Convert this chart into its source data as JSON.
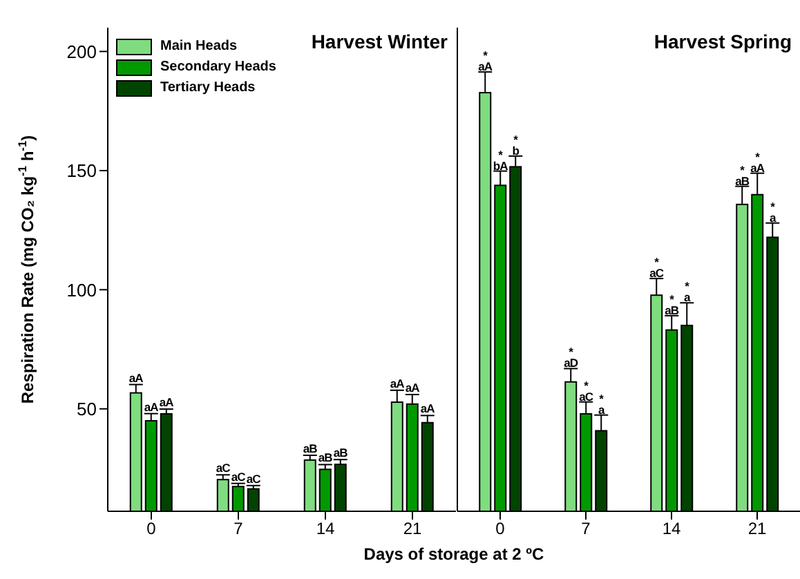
{
  "chart_data": [
    {
      "type": "bar",
      "title": "Harvest Winter",
      "xlabel": "Days of storage at 2 ºC",
      "ylabel": "Respiration Rate (mg CO₂ kg$^{-1}$ h$^{-1}$)",
      "categories": [
        "0",
        "7",
        "14",
        "21"
      ],
      "ylim": [
        7,
        210
      ],
      "yticks": [
        50,
        100,
        150,
        200
      ],
      "legend": "top left",
      "grid": false,
      "series": [
        {
          "name": "Main Heads",
          "color": "#7fdc7f",
          "values": [
            56.7,
            20.3,
            28.5,
            52.8
          ],
          "errors": [
            3.5,
            2,
            2,
            5
          ],
          "value_labels": [
            "aA",
            "aC",
            "aB",
            "aA"
          ]
        },
        {
          "name": "Secondary Heads",
          "color": "#009a00",
          "values": [
            45.0,
            17.4,
            24.6,
            52.0
          ],
          "errors": [
            3,
            1.3,
            2,
            4
          ],
          "value_labels": [
            "aA",
            "aC",
            "aB",
            "aA"
          ]
        },
        {
          "name": "Tertiary Heads",
          "color": "#004400",
          "values": [
            47.9,
            16.4,
            26.7,
            44.2
          ],
          "errors": [
            2,
            1.4,
            2,
            3
          ],
          "value_labels": [
            "aA",
            "aC",
            "aB",
            "aA"
          ]
        }
      ]
    },
    {
      "type": "bar",
      "title": "Harvest Spring",
      "categories": [
        "0",
        "7",
        "14",
        "21"
      ],
      "ylim": [
        7,
        210
      ],
      "yticks": [
        50,
        100,
        150,
        200
      ],
      "tick_labels": "x",
      "grid": false,
      "series": [
        {
          "color": "#7fdc7f",
          "values": [
            182.7,
            61.3,
            97.7,
            135.8
          ],
          "errors": [
            8.7,
            5.6,
            7,
            7.6
          ],
          "value_labels": [
            "*\naA",
            "*\naD",
            "*\naC",
            "*\naB"
          ]
        },
        {
          "color": "#009a00",
          "values": [
            143.8,
            47.9,
            83.1,
            139.9
          ],
          "errors": [
            6,
            5,
            6,
            9
          ],
          "value_labels": [
            "*\nbA",
            "*\naC",
            "*\naB",
            "*\naA"
          ]
        },
        {
          "color": "#004400",
          "values": [
            151.6,
            40.8,
            85.0,
            122.0
          ],
          "errors": [
            4.5,
            6.6,
            9.5,
            6
          ],
          "value_labels": [
            "*\nb",
            "*\na",
            "*\na",
            "*\na"
          ]
        }
      ]
    }
  ]
}
